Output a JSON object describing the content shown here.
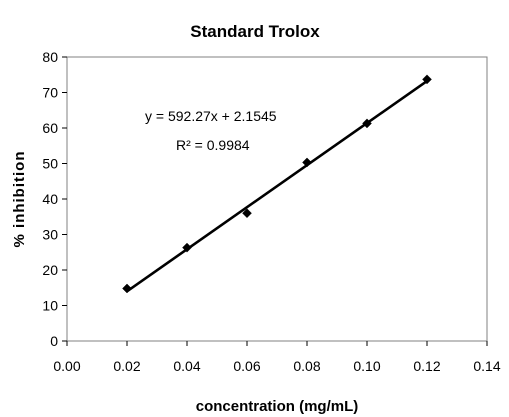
{
  "chart_data": {
    "type": "scatter",
    "title": "Standard Trolox",
    "xlabel": "concentration (mg/mL)",
    "ylabel": "% inhibition",
    "xlim": [
      0,
      0.14
    ],
    "ylim": [
      0,
      80
    ],
    "xticks": [
      "0.00",
      "0.02",
      "0.04",
      "0.06",
      "0.08",
      "0.10",
      "0.12",
      "0.14"
    ],
    "yticks": [
      "0",
      "10",
      "20",
      "30",
      "40",
      "50",
      "60",
      "70",
      "80"
    ],
    "grid": false,
    "series": [
      {
        "x": [
          0.02,
          0.04,
          0.06,
          0.08,
          0.1,
          0.12
        ],
        "y": [
          14.8,
          26.3,
          36.0,
          50.3,
          61.3,
          73.7
        ],
        "color": "#000000",
        "marker": "diamond"
      }
    ],
    "trendline": {
      "type": "linear",
      "slope": 592.27,
      "intercept": 2.1545,
      "x_range": [
        0.02,
        0.12
      ],
      "equation": "y = 592.27x + 2.1545",
      "r2_text": "R² = 0.9984",
      "color": "#000000"
    }
  }
}
